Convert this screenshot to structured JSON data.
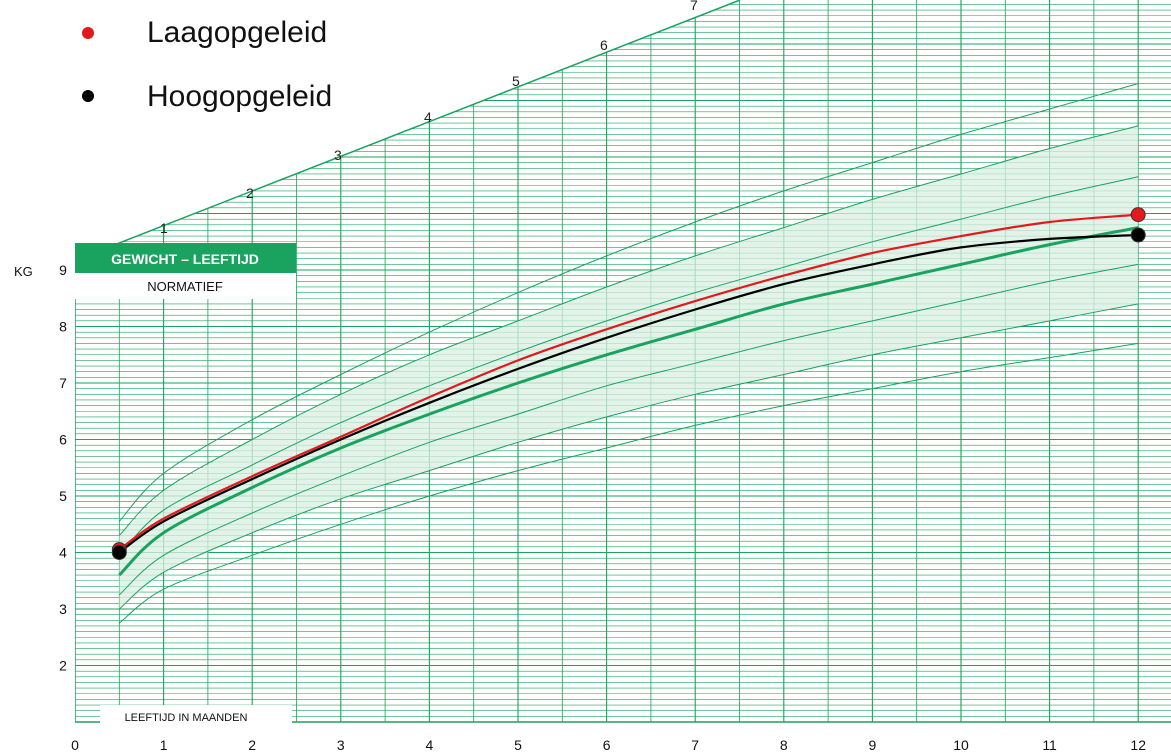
{
  "chart_data": {
    "type": "line",
    "title": "GEWICHT – LEEFTIJD",
    "subtitle": "NORMATIEF",
    "xlabel": "LEEFTIJD IN MAANDEN",
    "ylabel": "KG",
    "xlim": [
      0,
      12.4
    ],
    "ylim": [
      1.0,
      9.9
    ],
    "x_ticks": [
      "0",
      "1",
      "2",
      "3",
      "4",
      "5",
      "6",
      "7",
      "8",
      "9",
      "10",
      "11",
      "12"
    ],
    "y_ticks": [
      "2",
      "3",
      "4",
      "5",
      "6",
      "7",
      "8",
      "9"
    ],
    "diagonal_labels": [
      "1",
      "2",
      "3",
      "4",
      "5",
      "6",
      "7"
    ],
    "grid": true,
    "legend_position": "top-left",
    "series": [
      {
        "name": "Laagopgeleid",
        "color": "#e31a1c",
        "x": [
          0.5,
          1,
          2,
          3,
          4,
          5,
          6,
          7,
          8,
          9,
          10,
          11,
          12
        ],
        "y": [
          4.05,
          4.6,
          5.35,
          6.05,
          6.75,
          7.4,
          7.95,
          8.45,
          8.9,
          9.3,
          9.6,
          9.85,
          9.98
        ]
      },
      {
        "name": "Hoogopgeleid",
        "color": "#000000",
        "x": [
          0.5,
          1,
          2,
          3,
          4,
          5,
          6,
          7,
          8,
          9,
          10,
          11,
          12
        ],
        "y": [
          4.0,
          4.55,
          5.3,
          6.0,
          6.65,
          7.25,
          7.8,
          8.3,
          8.75,
          9.1,
          9.4,
          9.55,
          9.62
        ]
      }
    ],
    "reference_curves": {
      "color": "#1aa35e",
      "band_color": "#d9efe2",
      "median": [
        3.6,
        4.35,
        5.15,
        5.85,
        6.45,
        7.0,
        7.5,
        7.95,
        8.4,
        8.75,
        9.1,
        9.45,
        9.75
      ],
      "upper_outer": [
        4.55,
        5.4,
        6.35,
        7.15,
        7.9,
        8.6,
        9.25,
        9.85,
        10.4,
        10.9,
        11.4,
        11.85,
        12.3
      ],
      "upper_mid": [
        4.3,
        5.1,
        6.0,
        6.8,
        7.5,
        8.1,
        8.7,
        9.25,
        9.75,
        10.25,
        10.7,
        11.15,
        11.55
      ],
      "upper_inner": [
        3.95,
        4.75,
        5.55,
        6.3,
        6.95,
        7.55,
        8.1,
        8.6,
        9.05,
        9.5,
        9.9,
        10.3,
        10.65
      ],
      "lower_inner": [
        3.25,
        3.95,
        4.7,
        5.35,
        5.95,
        6.45,
        6.95,
        7.35,
        7.75,
        8.1,
        8.45,
        8.8,
        9.1
      ],
      "lower_mid": [
        3.0,
        3.65,
        4.35,
        4.95,
        5.45,
        5.95,
        6.4,
        6.8,
        7.15,
        7.5,
        7.8,
        8.1,
        8.4
      ],
      "lower_outer": [
        2.75,
        3.35,
        3.95,
        4.5,
        5.0,
        5.45,
        5.85,
        6.25,
        6.6,
        6.9,
        7.2,
        7.45,
        7.7
      ],
      "band_x": [
        0.5,
        1,
        2,
        3,
        4,
        5,
        6,
        7,
        8,
        9,
        10,
        11,
        12
      ]
    }
  }
}
